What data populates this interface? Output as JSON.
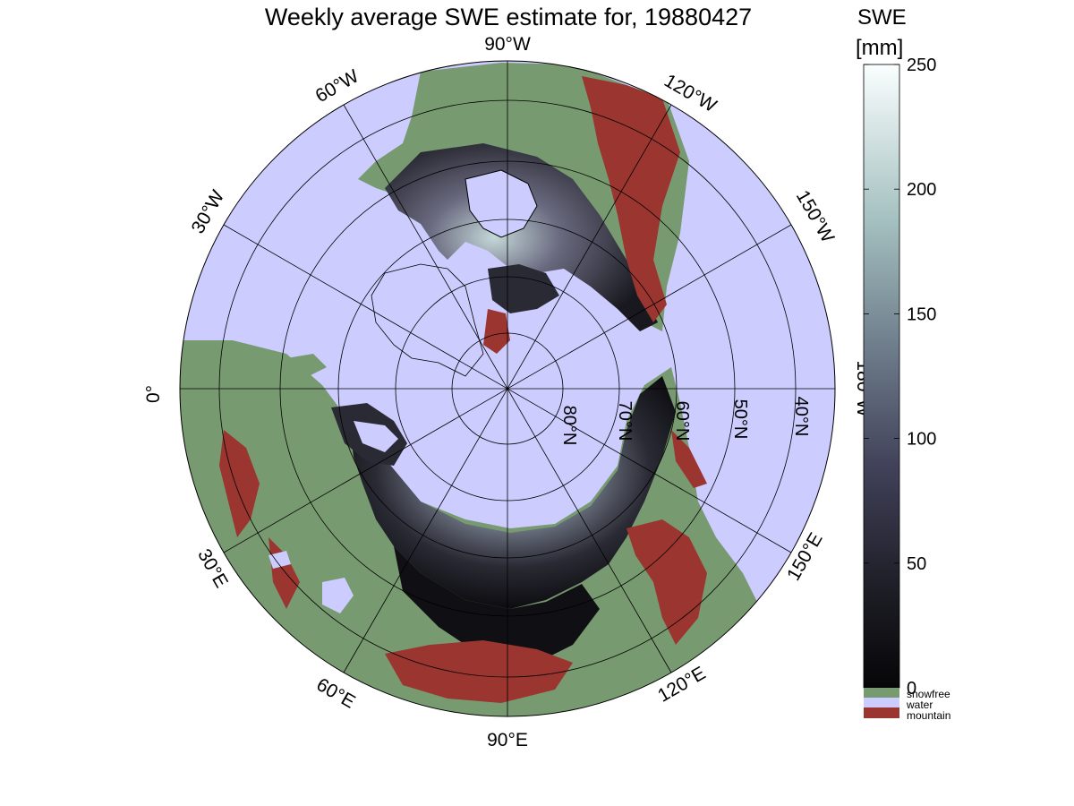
{
  "title": "Weekly average SWE estimate for, 19880427",
  "colorbar": {
    "title_line1": "SWE",
    "title_line2": "[mm]",
    "ticks": [
      "0",
      "50",
      "100",
      "150",
      "200",
      "250"
    ],
    "range": [
      0,
      250
    ],
    "legend": [
      {
        "label": "snowfree",
        "color": "#789a70"
      },
      {
        "label": "water",
        "color": "#ccccff"
      },
      {
        "label": "mountain",
        "color": "#9a3530"
      }
    ]
  },
  "map": {
    "projection": "north polar stereographic",
    "longitude_labels": [
      "90°W",
      "120°W",
      "150°W",
      "180°W",
      "150°E",
      "120°E",
      "90°E",
      "60°E",
      "30°E",
      "0°",
      "30°W",
      "60°W"
    ],
    "latitude_labels": [
      "80°N",
      "70°N",
      "60°N",
      "50°N",
      "40°N"
    ],
    "colors": {
      "water": "#ccccff",
      "snowfree": "#789a70",
      "mountain": "#9a3530",
      "swe_low": "#0a0a0e",
      "swe_high": "#f5fbfb"
    }
  }
}
